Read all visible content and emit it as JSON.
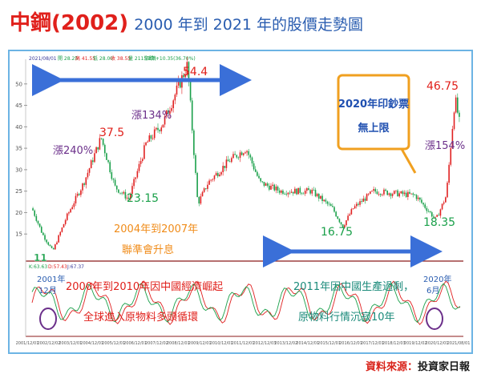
{
  "header": {
    "title": "中鋼(2002)",
    "subtitle": "2000 年到 2021 年的股價走勢圖"
  },
  "source": {
    "label": "資料來源：",
    "value": "投資家日報"
  },
  "top_bar": {
    "date": "2021/08/01",
    "items": [
      "開 28.25",
      "高 41.55",
      "低 28.00",
      "收 38.55",
      "量 2115.8萬"
    ],
    "right_label": "漲跌 +10.35(36.70%)"
  },
  "indicator_bar": {
    "items": [
      "K:63.63",
      "D:57.43",
      "J:67.37"
    ]
  },
  "notes": {
    "box_line1": "2020年印鈔票",
    "box_line2": "無上限",
    "rise_240": "漲240%",
    "rise_134": "漲134%",
    "rise_154": "漲154%",
    "period_2004": "2004年到2007年",
    "fed_hike": "聯準會升息",
    "china_boom": "2000年到2010年因中國經濟崛起",
    "bull_market": "全球進入原物料多頭循環",
    "china_glut": "2011年因中國生產過剩，",
    "commodity_slump": "原物料行情沉寂10年",
    "mark_2001_year": "2001年",
    "mark_2001_month": "12月",
    "mark_2020_year": "2020年",
    "mark_2020_month": "6月"
  },
  "colors": {
    "up": "#e02020",
    "down": "#1aa04a",
    "arrow": "#3a6fd8",
    "box_border": "#f0a020",
    "frame": "#6cb4e4",
    "title_red": "#e0201b",
    "subtitle_blue": "#2a5db0"
  },
  "chart_data": {
    "type": "candlestick",
    "title": "中鋼(2002) 2000 年到 2021 年的股價走勢圖",
    "x_range": [
      "2000/12",
      "2021/08"
    ],
    "y_range": [
      10,
      55
    ],
    "y_ticks": [
      15,
      20,
      25,
      30,
      35,
      40,
      45,
      50
    ],
    "x_tick_labels": [
      "2001/12/01",
      "2002/12/02",
      "2003/12/01",
      "2004/12/01",
      "2005/12/01",
      "2006/12/01",
      "2007/12/02",
      "2008/12/01",
      "2009/12/01",
      "2010/12/01",
      "2011/12/01",
      "2012/12/03",
      "2013/12/02",
      "2014/12/01",
      "2015/12/01",
      "2016/12/01",
      "2017/12/01",
      "2018/12/03",
      "2019/12/02",
      "2020/12/01",
      "2021/08/01"
    ],
    "price_path": [
      {
        "x": "2000/12",
        "y": 21
      },
      {
        "x": "2001/06",
        "y": 15
      },
      {
        "x": "2001/12",
        "y": 11
      },
      {
        "x": "2002/08",
        "y": 19
      },
      {
        "x": "2003/06",
        "y": 27
      },
      {
        "x": "2004/04",
        "y": 37.5
      },
      {
        "x": "2004/12",
        "y": 26
      },
      {
        "x": "2005/08",
        "y": 23.15
      },
      {
        "x": "2006/06",
        "y": 36
      },
      {
        "x": "2007/04",
        "y": 41
      },
      {
        "x": "2008/06",
        "y": 54.4
      },
      {
        "x": "2008/12",
        "y": 22
      },
      {
        "x": "2009/06",
        "y": 27
      },
      {
        "x": "2010/06",
        "y": 32
      },
      {
        "x": "2011/04",
        "y": 35
      },
      {
        "x": "2011/12",
        "y": 27
      },
      {
        "x": "2012/12",
        "y": 25
      },
      {
        "x": "2014/06",
        "y": 25
      },
      {
        "x": "2015/06",
        "y": 21
      },
      {
        "x": "2015/12",
        "y": 16.75
      },
      {
        "x": "2016/06",
        "y": 21
      },
      {
        "x": "2017/06",
        "y": 25
      },
      {
        "x": "2018/06",
        "y": 24.5
      },
      {
        "x": "2019/06",
        "y": 24
      },
      {
        "x": "2020/06",
        "y": 18.35
      },
      {
        "x": "2020/12",
        "y": 24
      },
      {
        "x": "2021/05",
        "y": 46.75
      },
      {
        "x": "2021/08",
        "y": 40
      }
    ],
    "annotations": [
      {
        "label": "11",
        "x": "2001/12",
        "y": 11
      },
      {
        "label": "37.5",
        "x": "2004/04",
        "y": 37.5
      },
      {
        "label": "23.15",
        "x": "2005/08",
        "y": 23.15
      },
      {
        "label": "54.4",
        "x": "2008/06",
        "y": 54.4
      },
      {
        "label": "16.75",
        "x": "2015/12",
        "y": 16.75
      },
      {
        "label": "18.35",
        "x": "2020/06",
        "y": 18.35
      },
      {
        "label": "46.75",
        "x": "2021/05",
        "y": 46.75
      }
    ],
    "grid": false,
    "legend": "none"
  }
}
